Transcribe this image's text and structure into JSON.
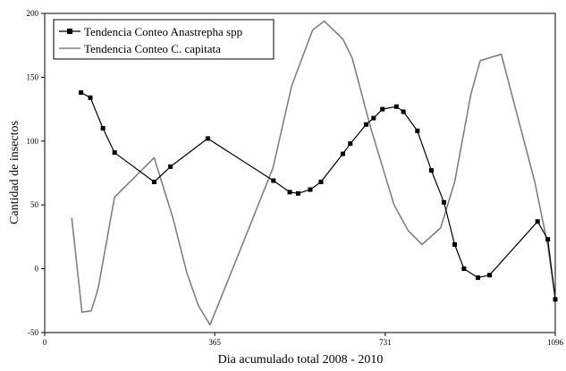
{
  "chart_data": {
    "type": "line",
    "xlabel": "Dia acumulado total 2008 - 2010",
    "ylabel": "Cantidad de insectos",
    "xlim": [
      0,
      1096
    ],
    "ylim": [
      -50,
      200
    ],
    "x_ticks": [
      0,
      365,
      731,
      1096
    ],
    "y_ticks": [
      -50,
      0,
      50,
      100,
      150,
      200
    ],
    "grid": false,
    "legend_position": "top-left",
    "series": [
      {
        "name": "Tendencia Conteo Anastrepha spp",
        "color": "#000000",
        "marker": "square",
        "x": [
          78,
          98,
          125,
          150,
          235,
          270,
          350,
          491,
          526,
          544,
          570,
          593,
          640,
          656,
          690,
          706,
          725,
          755,
          770,
          800,
          830,
          857,
          880,
          900,
          930,
          955,
          1058,
          1080,
          1096
        ],
        "y": [
          138,
          134,
          110,
          91,
          68,
          80,
          102,
          69,
          60,
          59,
          62,
          68,
          90,
          98,
          113,
          118,
          125,
          127,
          123,
          108,
          77,
          52,
          19,
          0,
          -7,
          -5,
          37,
          23,
          -24
        ]
      },
      {
        "name": "Tendencia Conteo C. capitata",
        "color": "#808080",
        "marker": "none",
        "x": [
          58,
          80,
          100,
          115,
          150,
          235,
          275,
          305,
          330,
          355,
          420,
          490,
          530,
          575,
          600,
          640,
          660,
          700,
          750,
          780,
          810,
          850,
          880,
          915,
          935,
          980,
          1052,
          1080,
          1096
        ],
        "y": [
          40,
          -34,
          -33,
          -15,
          56,
          87,
          40,
          -3,
          -29,
          -44,
          15,
          79,
          143,
          187,
          194,
          180,
          165,
          110,
          50,
          30,
          19,
          32,
          68,
          137,
          163,
          168,
          68,
          18,
          -23
        ]
      }
    ]
  }
}
